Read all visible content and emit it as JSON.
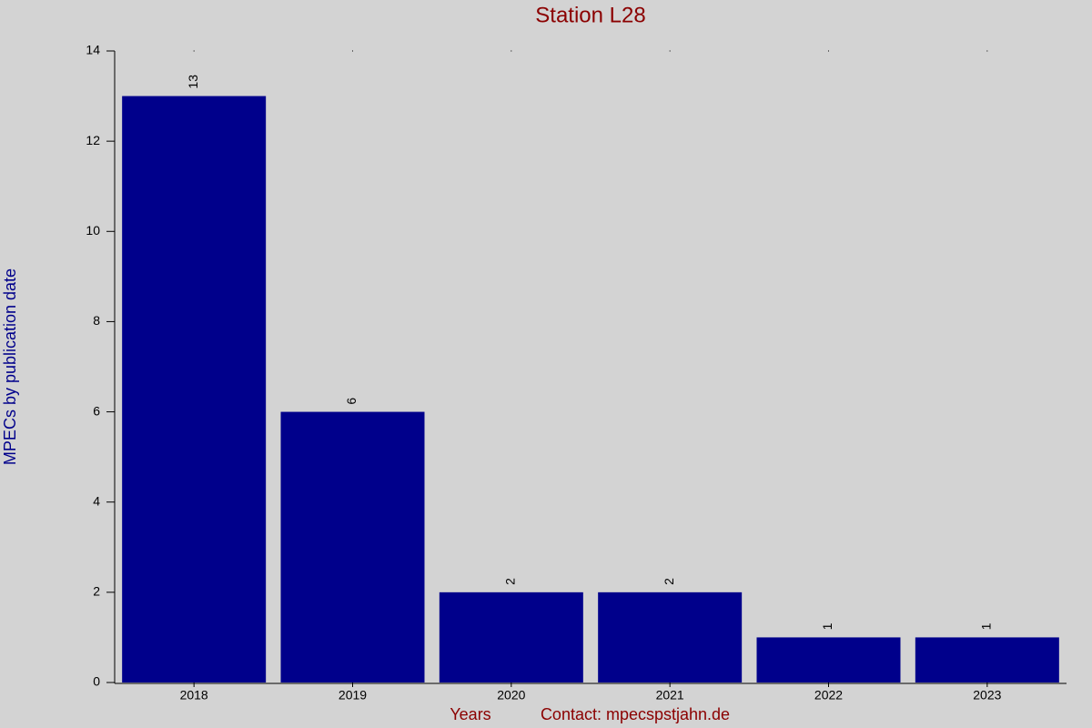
{
  "chart_data": {
    "type": "bar",
    "title": "Station L28",
    "y_label": "MPECs by publication date",
    "x_label": "Years",
    "annotation": "Contact: mpecspstjahn.de",
    "categories": [
      "2018",
      "2019",
      "2020",
      "2021",
      "2022",
      "2023"
    ],
    "values": [
      13,
      6,
      2,
      2,
      1,
      1
    ],
    "color": "#00008b",
    "ylim": [
      0,
      14
    ],
    "yticks": [
      0,
      2,
      4,
      6,
      8,
      10,
      12,
      14
    ]
  }
}
